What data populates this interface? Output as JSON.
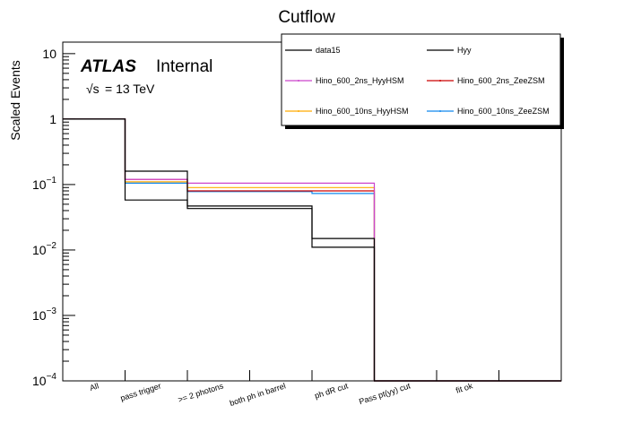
{
  "chart_data": {
    "type": "line",
    "step": true,
    "title": "Cutflow",
    "xlabel": "",
    "ylabel": "Scaled Events",
    "yscale": "log",
    "ylim": [
      0.0001,
      15
    ],
    "categories": [
      "All",
      "pass trigger",
      ">= 2 photons",
      "both ph in barrel",
      "ph dR cut",
      "Pass pt(yy) cut",
      "fit ok",
      ""
    ],
    "y_ticks": [
      {
        "value": 10,
        "base": "10",
        "exp": ""
      },
      {
        "value": 1,
        "base": "1",
        "exp": ""
      },
      {
        "value": 0.1,
        "base": "10",
        "exp": "−1"
      },
      {
        "value": 0.01,
        "base": "10",
        "exp": "−2"
      },
      {
        "value": 0.001,
        "base": "10",
        "exp": "−3"
      },
      {
        "value": 0.0001,
        "base": "10",
        "exp": "−4"
      }
    ],
    "series": [
      {
        "name": "data15",
        "color": "#000000",
        "values": [
          1,
          0.16,
          0.047,
          0.047,
          0.011,
          0.0001,
          0.0001,
          0.0001
        ]
      },
      {
        "name": "Hyy",
        "color": "#000000",
        "values": [
          1,
          0.058,
          0.043,
          0.043,
          0.015,
          0.0001,
          0.0001,
          0.0001
        ]
      },
      {
        "name": "Hino_600_2ns_HyyHSM",
        "color": "#cc44cc",
        "values": [
          1,
          0.12,
          0.105,
          0.105,
          0.105,
          0.0001,
          0.0001,
          0.0001
        ]
      },
      {
        "name": "Hino_600_2ns_ZeeZSM",
        "color": "#cc0000",
        "values": [
          1,
          0.12,
          0.08,
          0.08,
          0.08,
          0.0001,
          0.0001,
          0.0001
        ]
      },
      {
        "name": "Hino_600_10ns_HyyHSM",
        "color": "#ffaa00",
        "values": [
          1,
          0.11,
          0.09,
          0.09,
          0.09,
          0.0001,
          0.0001,
          0.0001
        ]
      },
      {
        "name": "Hino_600_10ns_ZeeZSM",
        "color": "#1188ee",
        "values": [
          1,
          0.105,
          0.078,
          0.078,
          0.073,
          0.0001,
          0.0001,
          0.0001
        ]
      }
    ],
    "legend_position": "top-right",
    "annotations": {
      "experiment": "ATLAS",
      "status": "Internal",
      "energy_sqrt": "√s",
      "energy_value": "= 13 TeV"
    }
  }
}
